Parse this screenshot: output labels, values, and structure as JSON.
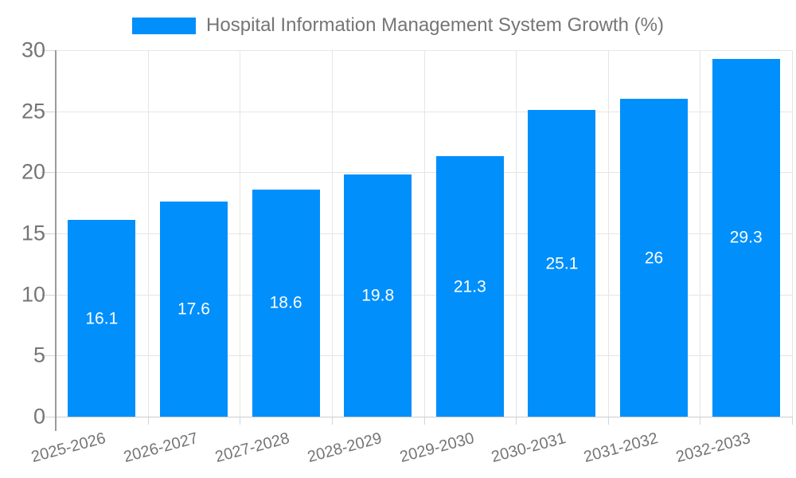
{
  "legend": {
    "label": "Hospital Information Management System Growth (%)"
  },
  "colors": {
    "bar": "#008FFB",
    "grid": "#E5E5E5",
    "axis_y_line": "#9B9B9B",
    "axis_x_line": "#CDCDCD",
    "tick": "#D5D5D5",
    "axis_text": "#757575",
    "legend_text": "#757575",
    "data_label_text": "#FFFFFF",
    "background": "#FFFFFF"
  },
  "chart_data": {
    "type": "bar",
    "title": "Hospital Information Management System Growth (%)",
    "categories": [
      "2025-2026",
      "2026-2027",
      "2027-2028",
      "2028-2029",
      "2029-2030",
      "2030-2031",
      "2031-2032",
      "2032-2033"
    ],
    "values": [
      16.1,
      17.6,
      18.6,
      19.8,
      21.3,
      25.1,
      26,
      29.3
    ],
    "series_name": "Hospital Information Management System Growth (%)",
    "xlabel": "",
    "ylabel": "",
    "ylim": [
      0,
      30
    ],
    "yticks": [
      0,
      5,
      10,
      15,
      20,
      25,
      30
    ],
    "grid": true,
    "legend_position": "top",
    "data_labels_position": "inside-center",
    "x_label_rotation_deg": -15
  }
}
